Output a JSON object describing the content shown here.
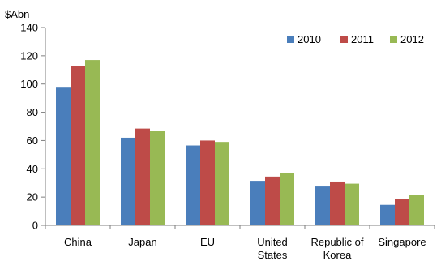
{
  "chart_data": {
    "type": "bar",
    "title": "",
    "ylabel": "$Abn",
    "xlabel": "",
    "categories": [
      [
        "China"
      ],
      [
        "Japan"
      ],
      [
        "EU"
      ],
      [
        "United",
        "States"
      ],
      [
        "Republic of",
        "Korea"
      ],
      [
        "Singapore"
      ]
    ],
    "series": [
      {
        "name": "2010",
        "color": "#4a7ebb",
        "values": [
          98,
          62,
          56.5,
          31.5,
          27.5,
          14.5
        ]
      },
      {
        "name": "2011",
        "color": "#be4b48",
        "values": [
          113,
          68.5,
          60,
          34.5,
          31,
          18.5
        ]
      },
      {
        "name": "2012",
        "color": "#98b954",
        "values": [
          117,
          67,
          59,
          37,
          29.5,
          21.5
        ]
      }
    ],
    "ylim": [
      0,
      140
    ],
    "yticks": [
      0,
      20,
      40,
      60,
      80,
      100,
      120,
      140
    ],
    "grid": false,
    "legend_position": "top-right"
  }
}
